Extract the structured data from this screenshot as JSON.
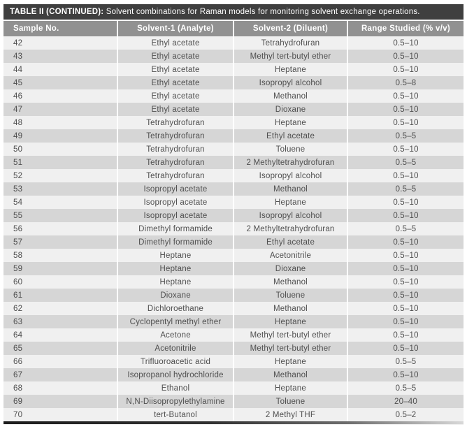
{
  "table": {
    "title_bold": "TABLE II (CONTINUED):",
    "title_rest": " Solvent combinations for Raman models for monitoring solvent exchange operations.",
    "columns": [
      "Sample No.",
      "Solvent-1 (Analyte)",
      "Solvent-2 (Diluent)",
      "Range Studied (% v/v)"
    ],
    "rows": [
      {
        "sample": "42",
        "solvent1": "Ethyl acetate",
        "solvent2": "Tetrahydrofuran",
        "range": "0.5–10"
      },
      {
        "sample": "43",
        "solvent1": "Ethyl acetate",
        "solvent2": "Methyl tert-butyl ether",
        "range": "0.5–10"
      },
      {
        "sample": "44",
        "solvent1": "Ethyl acetate",
        "solvent2": "Heptane",
        "range": "0.5–10"
      },
      {
        "sample": "45",
        "solvent1": "Ethyl acetate",
        "solvent2": "Isopropyl alcohol",
        "range": "0.5–8"
      },
      {
        "sample": "46",
        "solvent1": "Ethyl acetate",
        "solvent2": "Methanol",
        "range": "0.5–10"
      },
      {
        "sample": "47",
        "solvent1": "Ethyl acetate",
        "solvent2": "Dioxane",
        "range": "0.5–10"
      },
      {
        "sample": "48",
        "solvent1": "Tetrahydrofuran",
        "solvent2": "Heptane",
        "range": "0.5–10"
      },
      {
        "sample": "49",
        "solvent1": "Tetrahydrofuran",
        "solvent2": "Ethyl acetate",
        "range": "0.5–5"
      },
      {
        "sample": "50",
        "solvent1": "Tetrahydrofuran",
        "solvent2": "Toluene",
        "range": "0.5–10"
      },
      {
        "sample": "51",
        "solvent1": "Tetrahydrofuran",
        "solvent2": "2 Methyltetrahydrofuran",
        "range": "0.5–5"
      },
      {
        "sample": "52",
        "solvent1": "Tetrahydrofuran",
        "solvent2": "Isopropyl alcohol",
        "range": "0.5–10"
      },
      {
        "sample": "53",
        "solvent1": "Isopropyl acetate",
        "solvent2": "Methanol",
        "range": "0.5–5"
      },
      {
        "sample": "54",
        "solvent1": "Isopropyl acetate",
        "solvent2": "Heptane",
        "range": "0.5–10"
      },
      {
        "sample": "55",
        "solvent1": "Isopropyl acetate",
        "solvent2": "Isopropyl alcohol",
        "range": "0.5–10"
      },
      {
        "sample": "56",
        "solvent1": "Dimethyl formamide",
        "solvent2": "2 Methyltetrahydrofuran",
        "range": "0.5–5"
      },
      {
        "sample": "57",
        "solvent1": "Dimethyl formamide",
        "solvent2": "Ethyl acetate",
        "range": "0.5–10"
      },
      {
        "sample": "58",
        "solvent1": "Heptane",
        "solvent2": "Acetonitrile",
        "range": "0.5–10"
      },
      {
        "sample": "59",
        "solvent1": "Heptane",
        "solvent2": "Dioxane",
        "range": "0.5–10"
      },
      {
        "sample": "60",
        "solvent1": "Heptane",
        "solvent2": "Methanol",
        "range": "0.5–10"
      },
      {
        "sample": "61",
        "solvent1": "Dioxane",
        "solvent2": "Toluene",
        "range": "0.5–10"
      },
      {
        "sample": "62",
        "solvent1": "Dichloroethane",
        "solvent2": "Methanol",
        "range": "0.5–10"
      },
      {
        "sample": "63",
        "solvent1": "Cyclopentyl methyl ether",
        "solvent2": "Heptane",
        "range": "0.5–10"
      },
      {
        "sample": "64",
        "solvent1": "Acetone",
        "solvent2": "Methyl tert-butyl ether",
        "range": "0.5–10"
      },
      {
        "sample": "65",
        "solvent1": "Acetonitrile",
        "solvent2": "Methyl tert-butyl ether",
        "range": "0.5–10"
      },
      {
        "sample": "66",
        "solvent1": "Trifluoroacetic acid",
        "solvent2": "Heptane",
        "range": "0.5–5"
      },
      {
        "sample": "67",
        "solvent1": "Isopropanol hydrochloride",
        "solvent2": "Methanol",
        "range": "0.5–10"
      },
      {
        "sample": "68",
        "solvent1": "Ethanol",
        "solvent2": "Heptane",
        "range": "0.5–5"
      },
      {
        "sample": "69",
        "solvent1": "N,N-Diisopropylethylamine",
        "solvent2": "Toluene",
        "range": "20–40"
      },
      {
        "sample": "70",
        "solvent1": "tert-Butanol",
        "solvent2": "2 Methyl THF",
        "range": "0.5–2"
      }
    ]
  },
  "colors": {
    "title_bar_bg": "#3f3f3f",
    "header_bg": "#919191",
    "row_light": "#f0f0f0",
    "row_dark": "#d6d6d6",
    "body_text": "#4f4f4f",
    "header_text": "#ffffff"
  }
}
